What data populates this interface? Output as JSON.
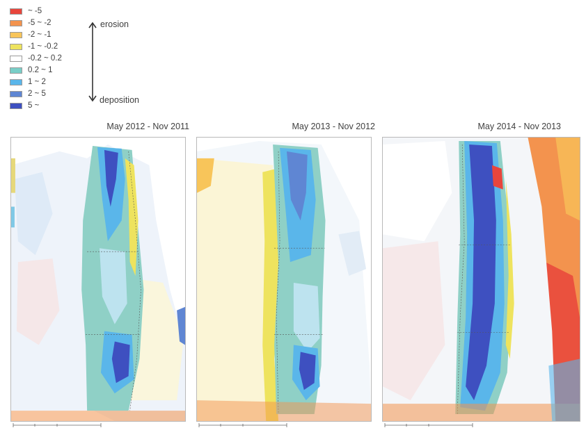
{
  "legend": {
    "items": [
      {
        "label": "~ -5",
        "color": "#e8453c"
      },
      {
        "label": "-5 ~ -2",
        "color": "#f3934e"
      },
      {
        "label": "-2 ~ -1",
        "color": "#f8c55a"
      },
      {
        "label": "-1 ~ -0.2",
        "color": "#eee35e"
      },
      {
        "label": "-0.2 ~ 0.2",
        "color": "#ffffff"
      },
      {
        "label": "0.2 ~ 1",
        "color": "#79cec7"
      },
      {
        "label": "1 ~ 2",
        "color": "#5ab6ea"
      },
      {
        "label": "2 ~ 5",
        "color": "#5f86d3"
      },
      {
        "label": "5 ~",
        "color": "#3e50c0"
      }
    ],
    "arrow_top_label": "erosion",
    "arrow_bottom_label": "deposition"
  },
  "panels": [
    {
      "title": "May 2012 - Nov 2011"
    },
    {
      "title": "May 2013 - Nov 2012"
    },
    {
      "title": "May 2014 - Nov 2013"
    }
  ]
}
